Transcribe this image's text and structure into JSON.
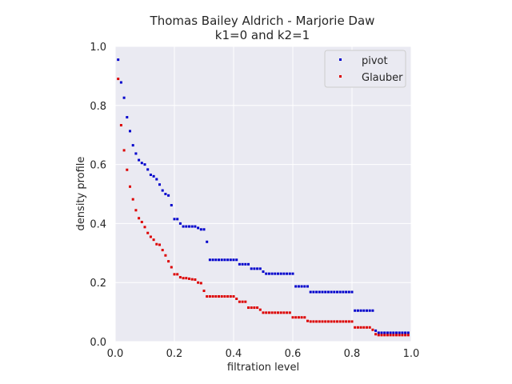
{
  "chart_data": {
    "type": "scatter",
    "title_line1": "Thomas Bailey Aldrich - Marjorie Daw",
    "title_line2": "k1=0 and k2=1",
    "xlabel": "filtration level",
    "ylabel": "density profile",
    "xlim": [
      0,
      1
    ],
    "ylim": [
      0,
      1
    ],
    "xticks": [
      0,
      0.2,
      0.4,
      0.6,
      0.8,
      1.0
    ],
    "yticks": [
      0,
      0.2,
      0.4,
      0.6,
      0.8,
      1.0
    ],
    "xtick_labels": [
      "0.0",
      "0.2",
      "0.4",
      "0.6",
      "0.8",
      "1.0"
    ],
    "ytick_labels": [
      "0.0",
      "0.2",
      "0.4",
      "0.6",
      "0.8",
      "1.0"
    ],
    "grid": true,
    "background": "#eaeaf2",
    "legend_position": "top-right",
    "series": [
      {
        "name": "pivot",
        "color": "#0000cc",
        "points": [
          [
            0.01,
            0.955
          ],
          [
            0.02,
            0.878
          ],
          [
            0.03,
            0.826
          ],
          [
            0.04,
            0.76
          ],
          [
            0.05,
            0.713
          ],
          [
            0.06,
            0.665
          ],
          [
            0.07,
            0.637
          ],
          [
            0.08,
            0.615
          ],
          [
            0.09,
            0.605
          ],
          [
            0.1,
            0.6
          ],
          [
            0.11,
            0.583
          ],
          [
            0.12,
            0.565
          ],
          [
            0.13,
            0.56
          ],
          [
            0.14,
            0.55
          ],
          [
            0.15,
            0.532
          ],
          [
            0.16,
            0.512
          ],
          [
            0.17,
            0.5
          ],
          [
            0.18,
            0.495
          ],
          [
            0.19,
            0.462
          ],
          [
            0.2,
            0.415
          ],
          [
            0.21,
            0.415
          ],
          [
            0.22,
            0.4
          ],
          [
            0.23,
            0.39
          ],
          [
            0.24,
            0.39
          ],
          [
            0.25,
            0.39
          ],
          [
            0.26,
            0.39
          ],
          [
            0.27,
            0.39
          ],
          [
            0.28,
            0.385
          ],
          [
            0.29,
            0.38
          ],
          [
            0.3,
            0.38
          ],
          [
            0.31,
            0.338
          ],
          [
            0.32,
            0.277
          ],
          [
            0.33,
            0.277
          ],
          [
            0.34,
            0.277
          ],
          [
            0.35,
            0.277
          ],
          [
            0.36,
            0.277
          ],
          [
            0.37,
            0.277
          ],
          [
            0.38,
            0.277
          ],
          [
            0.39,
            0.277
          ],
          [
            0.4,
            0.277
          ],
          [
            0.41,
            0.277
          ],
          [
            0.42,
            0.262
          ],
          [
            0.43,
            0.262
          ],
          [
            0.44,
            0.262
          ],
          [
            0.45,
            0.262
          ],
          [
            0.46,
            0.247
          ],
          [
            0.47,
            0.247
          ],
          [
            0.48,
            0.247
          ],
          [
            0.49,
            0.247
          ],
          [
            0.5,
            0.237
          ],
          [
            0.51,
            0.23
          ],
          [
            0.52,
            0.23
          ],
          [
            0.53,
            0.23
          ],
          [
            0.54,
            0.23
          ],
          [
            0.55,
            0.23
          ],
          [
            0.56,
            0.23
          ],
          [
            0.57,
            0.23
          ],
          [
            0.58,
            0.23
          ],
          [
            0.59,
            0.23
          ],
          [
            0.6,
            0.23
          ],
          [
            0.61,
            0.187
          ],
          [
            0.62,
            0.187
          ],
          [
            0.63,
            0.187
          ],
          [
            0.64,
            0.187
          ],
          [
            0.65,
            0.187
          ],
          [
            0.66,
            0.168
          ],
          [
            0.67,
            0.168
          ],
          [
            0.68,
            0.168
          ],
          [
            0.69,
            0.168
          ],
          [
            0.7,
            0.168
          ],
          [
            0.71,
            0.168
          ],
          [
            0.72,
            0.168
          ],
          [
            0.73,
            0.168
          ],
          [
            0.74,
            0.168
          ],
          [
            0.75,
            0.168
          ],
          [
            0.76,
            0.168
          ],
          [
            0.77,
            0.168
          ],
          [
            0.78,
            0.168
          ],
          [
            0.79,
            0.168
          ],
          [
            0.8,
            0.168
          ],
          [
            0.81,
            0.105
          ],
          [
            0.82,
            0.105
          ],
          [
            0.83,
            0.105
          ],
          [
            0.84,
            0.105
          ],
          [
            0.85,
            0.105
          ],
          [
            0.86,
            0.105
          ],
          [
            0.87,
            0.105
          ],
          [
            0.88,
            0.037
          ],
          [
            0.89,
            0.03
          ],
          [
            0.9,
            0.03
          ],
          [
            0.91,
            0.03
          ],
          [
            0.92,
            0.03
          ],
          [
            0.93,
            0.03
          ],
          [
            0.94,
            0.03
          ],
          [
            0.95,
            0.03
          ],
          [
            0.96,
            0.03
          ],
          [
            0.97,
            0.03
          ],
          [
            0.98,
            0.03
          ],
          [
            0.99,
            0.03
          ]
        ]
      },
      {
        "name": "Glauber",
        "color": "#dd0000",
        "points": [
          [
            0.01,
            0.89
          ],
          [
            0.02,
            0.733
          ],
          [
            0.03,
            0.648
          ],
          [
            0.04,
            0.582
          ],
          [
            0.05,
            0.525
          ],
          [
            0.06,
            0.482
          ],
          [
            0.07,
            0.445
          ],
          [
            0.08,
            0.418
          ],
          [
            0.09,
            0.405
          ],
          [
            0.1,
            0.388
          ],
          [
            0.11,
            0.368
          ],
          [
            0.12,
            0.355
          ],
          [
            0.13,
            0.345
          ],
          [
            0.14,
            0.33
          ],
          [
            0.15,
            0.328
          ],
          [
            0.16,
            0.31
          ],
          [
            0.17,
            0.292
          ],
          [
            0.18,
            0.272
          ],
          [
            0.19,
            0.252
          ],
          [
            0.2,
            0.228
          ],
          [
            0.21,
            0.228
          ],
          [
            0.22,
            0.218
          ],
          [
            0.23,
            0.215
          ],
          [
            0.24,
            0.215
          ],
          [
            0.25,
            0.213
          ],
          [
            0.26,
            0.211
          ],
          [
            0.27,
            0.21
          ],
          [
            0.28,
            0.2
          ],
          [
            0.29,
            0.198
          ],
          [
            0.3,
            0.172
          ],
          [
            0.31,
            0.153
          ],
          [
            0.32,
            0.153
          ],
          [
            0.33,
            0.153
          ],
          [
            0.34,
            0.153
          ],
          [
            0.35,
            0.153
          ],
          [
            0.36,
            0.153
          ],
          [
            0.37,
            0.153
          ],
          [
            0.38,
            0.153
          ],
          [
            0.39,
            0.153
          ],
          [
            0.4,
            0.153
          ],
          [
            0.41,
            0.145
          ],
          [
            0.42,
            0.135
          ],
          [
            0.43,
            0.135
          ],
          [
            0.44,
            0.135
          ],
          [
            0.45,
            0.115
          ],
          [
            0.46,
            0.115
          ],
          [
            0.47,
            0.115
          ],
          [
            0.48,
            0.115
          ],
          [
            0.49,
            0.108
          ],
          [
            0.5,
            0.098
          ],
          [
            0.51,
            0.098
          ],
          [
            0.52,
            0.098
          ],
          [
            0.53,
            0.098
          ],
          [
            0.54,
            0.098
          ],
          [
            0.55,
            0.098
          ],
          [
            0.56,
            0.098
          ],
          [
            0.57,
            0.098
          ],
          [
            0.58,
            0.098
          ],
          [
            0.59,
            0.098
          ],
          [
            0.6,
            0.082
          ],
          [
            0.61,
            0.082
          ],
          [
            0.62,
            0.082
          ],
          [
            0.63,
            0.082
          ],
          [
            0.64,
            0.082
          ],
          [
            0.65,
            0.07
          ],
          [
            0.66,
            0.068
          ],
          [
            0.67,
            0.068
          ],
          [
            0.68,
            0.068
          ],
          [
            0.69,
            0.068
          ],
          [
            0.7,
            0.068
          ],
          [
            0.71,
            0.068
          ],
          [
            0.72,
            0.068
          ],
          [
            0.73,
            0.068
          ],
          [
            0.74,
            0.068
          ],
          [
            0.75,
            0.068
          ],
          [
            0.76,
            0.068
          ],
          [
            0.77,
            0.068
          ],
          [
            0.78,
            0.068
          ],
          [
            0.79,
            0.068
          ],
          [
            0.8,
            0.068
          ],
          [
            0.81,
            0.048
          ],
          [
            0.82,
            0.048
          ],
          [
            0.83,
            0.048
          ],
          [
            0.84,
            0.048
          ],
          [
            0.85,
            0.048
          ],
          [
            0.86,
            0.048
          ],
          [
            0.87,
            0.04
          ],
          [
            0.88,
            0.025
          ],
          [
            0.89,
            0.022
          ],
          [
            0.9,
            0.022
          ],
          [
            0.91,
            0.022
          ],
          [
            0.92,
            0.022
          ],
          [
            0.93,
            0.022
          ],
          [
            0.94,
            0.022
          ],
          [
            0.95,
            0.022
          ],
          [
            0.96,
            0.022
          ],
          [
            0.97,
            0.022
          ],
          [
            0.98,
            0.022
          ],
          [
            0.99,
            0.022
          ]
        ]
      }
    ]
  }
}
